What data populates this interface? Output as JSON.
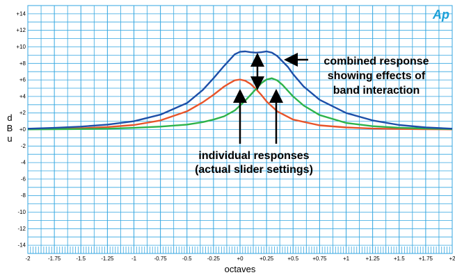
{
  "chart_data": {
    "type": "line",
    "title": "",
    "xlabel": "octaves",
    "ylabel": "d B u",
    "xlim": [
      -2,
      2
    ],
    "ylim": [
      -15,
      15
    ],
    "grid": true,
    "legend": "none",
    "xtick_labels": [
      {
        "value": -2,
        "label": "-2"
      },
      {
        "value": -1.75,
        "label": "-1.75"
      },
      {
        "value": -1.5,
        "label": "-1.5"
      },
      {
        "value": -1.25,
        "label": "-1.25"
      },
      {
        "value": -1,
        "label": "-1"
      },
      {
        "value": -0.75,
        "label": "-0.75"
      },
      {
        "value": -0.5,
        "label": "-0.5"
      },
      {
        "value": -0.25,
        "label": "-0.25"
      },
      {
        "value": 0,
        "label": "+0"
      },
      {
        "value": 0.25,
        "label": "+0.25"
      },
      {
        "value": 0.5,
        "label": "+0.5"
      },
      {
        "value": 0.75,
        "label": "+0.75"
      },
      {
        "value": 1,
        "label": "+1"
      },
      {
        "value": 1.25,
        "label": "+1.25"
      },
      {
        "value": 1.5,
        "label": "+1.5"
      },
      {
        "value": 1.75,
        "label": "+1.75"
      },
      {
        "value": 2,
        "label": "+2"
      }
    ],
    "ytick_labels": [
      {
        "value": 14,
        "label": "+14"
      },
      {
        "value": 12,
        "label": "+12"
      },
      {
        "value": 10,
        "label": "+10"
      },
      {
        "value": 8,
        "label": "+8"
      },
      {
        "value": 6,
        "label": "+6"
      },
      {
        "value": 4,
        "label": "+4"
      },
      {
        "value": 2,
        "label": "+2"
      },
      {
        "value": 0,
        "label": "+0"
      },
      {
        "value": -2,
        "label": "-2"
      },
      {
        "value": -4,
        "label": "-4"
      },
      {
        "value": -6,
        "label": "-6"
      },
      {
        "value": -8,
        "label": "-8"
      },
      {
        "value": -10,
        "label": "-10"
      },
      {
        "value": -12,
        "label": "-12"
      },
      {
        "value": -14,
        "label": "-14"
      }
    ],
    "series": [
      {
        "color": "#e8542a",
        "x": [
          -2,
          -1.75,
          -1.5,
          -1.25,
          -1,
          -0.75,
          -0.5,
          -0.35,
          -0.25,
          -0.15,
          -0.1,
          -0.05,
          0,
          0.05,
          0.1,
          0.15,
          0.2,
          0.25,
          0.35,
          0.5,
          0.75,
          1,
          1.25,
          1.5,
          1.75,
          2
        ],
        "y": [
          0.05,
          0.1,
          0.15,
          0.3,
          0.55,
          1.1,
          2.2,
          3.3,
          4.2,
          5.2,
          5.6,
          5.95,
          6.05,
          5.9,
          5.5,
          4.9,
          4.2,
          3.4,
          2.2,
          1.2,
          0.5,
          0.25,
          0.12,
          0.07,
          0.04,
          0.02
        ]
      },
      {
        "color": "#2db34a",
        "x": [
          -2,
          -1.75,
          -1.5,
          -1.25,
          -1,
          -0.75,
          -0.5,
          -0.35,
          -0.25,
          -0.15,
          -0.05,
          0,
          0.05,
          0.1,
          0.15,
          0.2,
          0.25,
          0.3,
          0.35,
          0.4,
          0.5,
          0.6,
          0.75,
          1,
          1.25,
          1.5,
          1.75,
          2
        ],
        "y": [
          0.02,
          0.04,
          0.06,
          0.1,
          0.2,
          0.35,
          0.6,
          0.9,
          1.2,
          1.6,
          2.3,
          2.9,
          3.5,
          4.2,
          4.9,
          5.6,
          6.05,
          6.2,
          5.95,
          5.4,
          4.0,
          2.9,
          1.75,
          0.8,
          0.4,
          0.22,
          0.12,
          0.05
        ]
      },
      {
        "color": "#1d4fa8",
        "x": [
          -2,
          -1.75,
          -1.5,
          -1.25,
          -1,
          -0.75,
          -0.5,
          -0.35,
          -0.25,
          -0.15,
          -0.05,
          0,
          0.05,
          0.1,
          0.15,
          0.2,
          0.25,
          0.3,
          0.35,
          0.45,
          0.5,
          0.6,
          0.75,
          1,
          1.25,
          1.5,
          1.75,
          2
        ],
        "y": [
          0.1,
          0.2,
          0.35,
          0.6,
          1.0,
          1.8,
          3.2,
          4.8,
          6.2,
          7.7,
          9.1,
          9.4,
          9.45,
          9.35,
          9.3,
          9.35,
          9.45,
          9.3,
          8.9,
          7.6,
          6.7,
          5.2,
          3.6,
          2.0,
          1.1,
          0.55,
          0.25,
          0.1
        ]
      }
    ],
    "annotations": [
      {
        "id": "combined",
        "lines": [
          "combined response",
          "showing effects of",
          "band interaction"
        ]
      },
      {
        "id": "individual",
        "lines": [
          "individual responses",
          "(actual slider settings)"
        ]
      }
    ],
    "logo": "Ap"
  }
}
